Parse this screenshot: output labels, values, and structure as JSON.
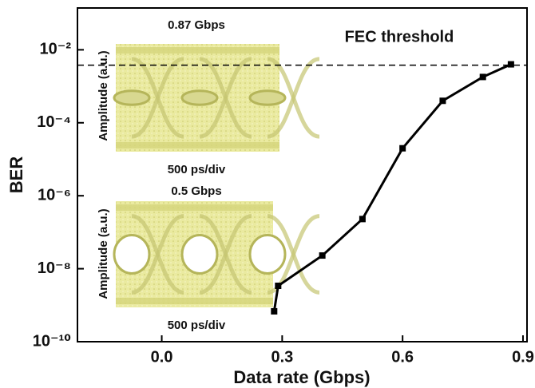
{
  "chart_data": {
    "type": "line",
    "x_label": "Data rate (Gbps)",
    "y_label": "BER",
    "log_y": true,
    "xlim": [
      -0.21,
      0.91
    ],
    "ylim": [
      1e-10,
      0.14
    ],
    "xticks": [
      {
        "value": 0,
        "label": "0.0"
      },
      0.3,
      0.6,
      0.9
    ],
    "yticks": [
      {
        "value": 1e-10,
        "label": "10⁻¹⁰"
      },
      {
        "value": 1e-08,
        "label": "10⁻⁸"
      },
      {
        "value": 1e-06,
        "label": "10⁻⁶"
      },
      {
        "value": 0.0001,
        "label": "10⁻⁴"
      },
      {
        "value": 0.01,
        "label": "10⁻²"
      }
    ],
    "x": [
      0.28,
      0.29,
      0.4,
      0.5,
      0.6,
      0.7,
      0.8,
      0.87
    ],
    "values": [
      6.8e-10,
      3.4e-09,
      2.3e-08,
      2.3e-07,
      2e-05,
      0.0004,
      0.0018,
      0.004
    ],
    "color": "#000000",
    "threshold": {
      "label": "FEC threshold",
      "value": 0.0038
    },
    "insets": [
      {
        "title": "0.87 Gbps",
        "x_label": "500 ps/div",
        "y_label": "Amplitude (a.u.)"
      },
      {
        "title": "0.5 Gbps",
        "x_label": "500 ps/div",
        "y_label": "Amplitude (a.u.)"
      }
    ]
  }
}
